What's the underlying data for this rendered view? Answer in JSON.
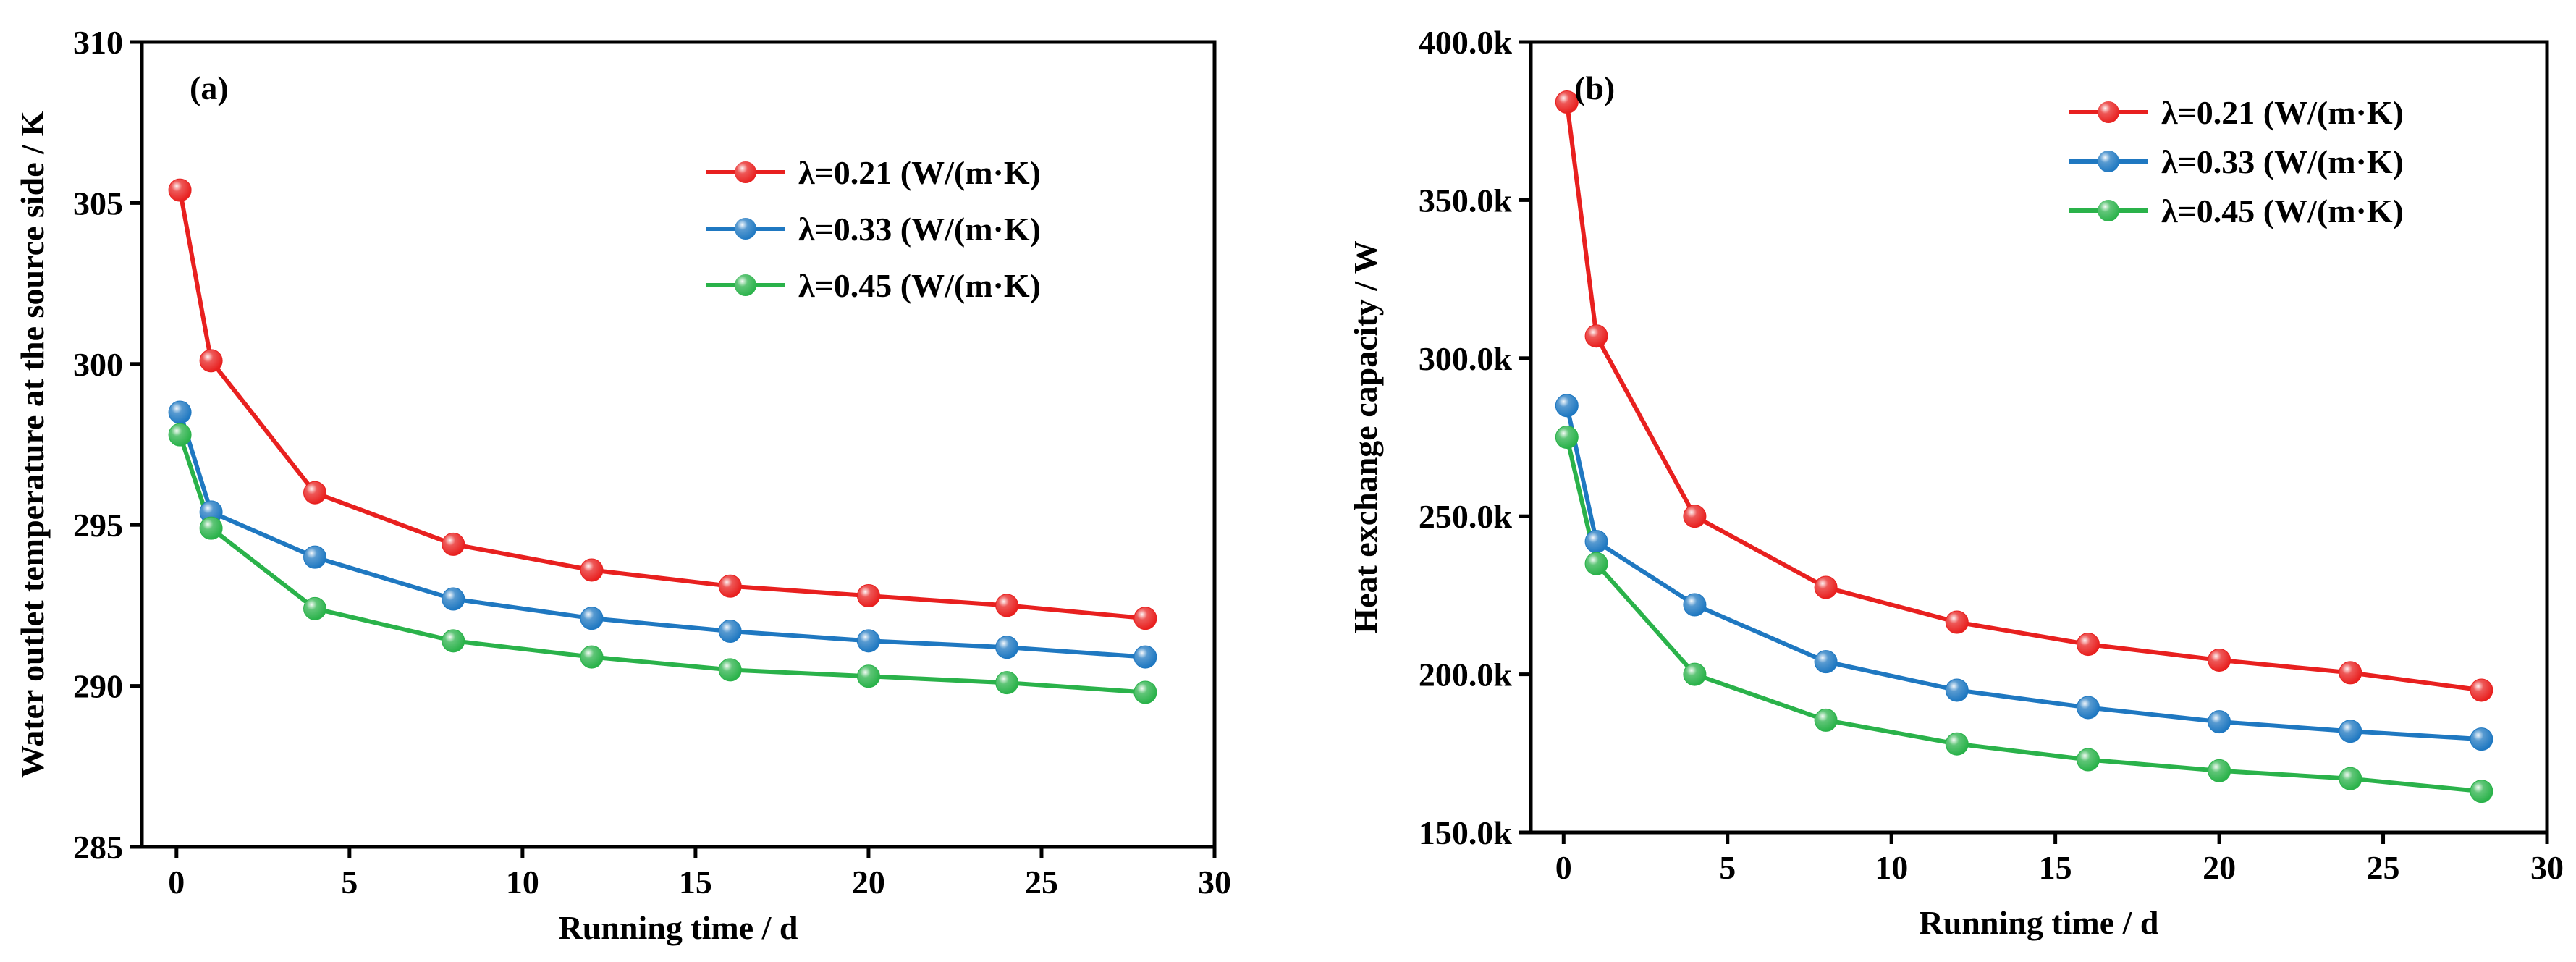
{
  "chart_data": [
    {
      "type": "line",
      "panel_label": "(a)",
      "title": "",
      "xlabel": "Running time / d",
      "ylabel": "Water outlet temperature at the source side / K",
      "xlim": [
        -1,
        30
      ],
      "ylim": [
        285,
        310
      ],
      "xticks": [
        0,
        5,
        10,
        15,
        20,
        25,
        30
      ],
      "xtick_labels": [
        "0",
        "5",
        "10",
        "15",
        "20",
        "25",
        "30"
      ],
      "yticks": [
        285,
        290,
        295,
        300,
        305,
        310
      ],
      "ytick_labels": [
        "285",
        "290",
        "295",
        "300",
        "305",
        "310"
      ],
      "legend_position": "top-right",
      "x": [
        0.1,
        1,
        4,
        8,
        12,
        16,
        20,
        24,
        28
      ],
      "series": [
        {
          "name": "λ=0.21 (W/(m·K)",
          "color": "#e8201f",
          "values": [
            305.4,
            300.1,
            296.0,
            294.4,
            293.6,
            293.1,
            292.8,
            292.5,
            292.1
          ]
        },
        {
          "name": "λ=0.33 (W/(m·K)",
          "color": "#1f78c1",
          "values": [
            298.5,
            295.4,
            294.0,
            292.7,
            292.1,
            291.7,
            291.4,
            291.2,
            290.9
          ]
        },
        {
          "name": "λ=0.45 (W/(m·K)",
          "color": "#2ab24a",
          "values": [
            297.8,
            294.9,
            292.4,
            291.4,
            290.9,
            290.5,
            290.3,
            290.1,
            289.8
          ]
        }
      ]
    },
    {
      "type": "line",
      "panel_label": "(b)",
      "title": "",
      "xlabel": "Running time / d",
      "ylabel": "Heat exchange capacity / W",
      "xlim": [
        -1,
        30
      ],
      "ylim": [
        150000,
        400000
      ],
      "xticks": [
        0,
        5,
        10,
        15,
        20,
        25,
        30
      ],
      "xtick_labels": [
        "0",
        "5",
        "10",
        "15",
        "20",
        "25",
        "30"
      ],
      "yticks": [
        150000,
        200000,
        250000,
        300000,
        350000,
        400000
      ],
      "ytick_labels": [
        "150.0k",
        "200.0k",
        "250.0k",
        "300.0k",
        "350.0k",
        "400.0k"
      ],
      "legend_position": "top-right",
      "x": [
        0.1,
        1,
        4,
        8,
        12,
        16,
        20,
        24,
        28
      ],
      "series": [
        {
          "name": "λ=0.21 (W/(m·K)",
          "color": "#e8201f",
          "values": [
            381000,
            307000,
            250000,
            227500,
            216500,
            209500,
            204500,
            200500,
            195000
          ]
        },
        {
          "name": "λ=0.33 (W/(m·K)",
          "color": "#1f78c1",
          "values": [
            285000,
            242000,
            222000,
            204000,
            195000,
            189500,
            185000,
            182000,
            179500
          ]
        },
        {
          "name": "λ=0.45 (W/(m·K)",
          "color": "#2ab24a",
          "values": [
            275000,
            235000,
            200000,
            185500,
            178000,
            173000,
            169500,
            167000,
            163000
          ]
        }
      ]
    }
  ]
}
